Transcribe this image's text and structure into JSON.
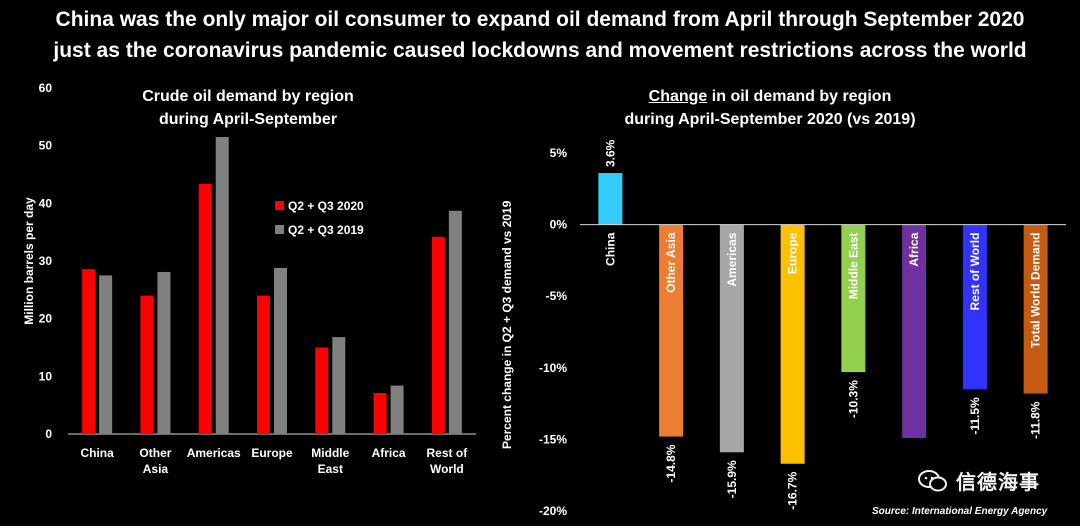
{
  "headline": {
    "line1": "China was the only major oil consumer to expand oil demand from April through September 2020",
    "line2": "just as the coronavirus pandemic caused lockdowns and movement restrictions across the world"
  },
  "left_title": {
    "line1": "Crude oil demand by region",
    "line2": "during April-September"
  },
  "right_title": {
    "line1_u": "Change",
    "line1_rest": " in oil demand by region",
    "line2": "during April-September 2020 (vs 2019)"
  },
  "watermark": "信德海事",
  "source": "Source: International Energy Agency",
  "chart_data": [
    {
      "type": "bar",
      "title": "Crude oil demand by region during April-September",
      "categories": [
        [
          "China"
        ],
        [
          "Other",
          "Asia"
        ],
        [
          "Americas"
        ],
        [
          "Europe"
        ],
        [
          "Middle",
          "East"
        ],
        [
          "Africa"
        ],
        [
          "Rest of",
          "World"
        ]
      ],
      "series": [
        {
          "name": "Q2 + Q3 2020",
          "color": "#ff0000",
          "values": [
            28.6,
            24.0,
            43.4,
            24.0,
            15.0,
            7.1,
            34.2
          ]
        },
        {
          "name": "Q2 + Q3 2019",
          "color": "#808080",
          "values": [
            27.5,
            28.1,
            51.5,
            28.8,
            16.8,
            8.4,
            38.7
          ]
        }
      ],
      "ylabel": "Million barrels per day",
      "ylim": [
        0,
        60
      ],
      "yticks": [
        "0",
        "10",
        "20",
        "30",
        "40",
        "50",
        "60"
      ],
      "legend": "center-right",
      "grid": false
    },
    {
      "type": "bar",
      "title": "Change in oil demand by region during April-September 2020 (vs 2019)",
      "categories": [
        "China",
        "Other Asia",
        "Americas",
        "Europe",
        "Middle East",
        "Africa",
        "Rest of World",
        "Total World Demand"
      ],
      "values": [
        3.6,
        -14.8,
        -15.9,
        -16.7,
        -10.3,
        -14.9,
        -11.5,
        -11.8
      ],
      "labels": [
        "3.6%",
        "-14.8%",
        "-15.9%",
        "-16.7%",
        "-10.3%",
        "",
        "-11.5%",
        "-11.8%"
      ],
      "colors": [
        "#33ccff",
        "#ed7d31",
        "#a6a6a6",
        "#ffc000",
        "#92d050",
        "#7030a0",
        "#3333ff",
        "#c55a11"
      ],
      "ylabel": "Percent change in Q2 + Q3 demand vs 2019",
      "ylim": [
        -20,
        5
      ],
      "yticks": [
        "5%",
        "0%",
        "-5%",
        "-10%",
        "-15%",
        "-20%"
      ],
      "grid": false
    }
  ]
}
